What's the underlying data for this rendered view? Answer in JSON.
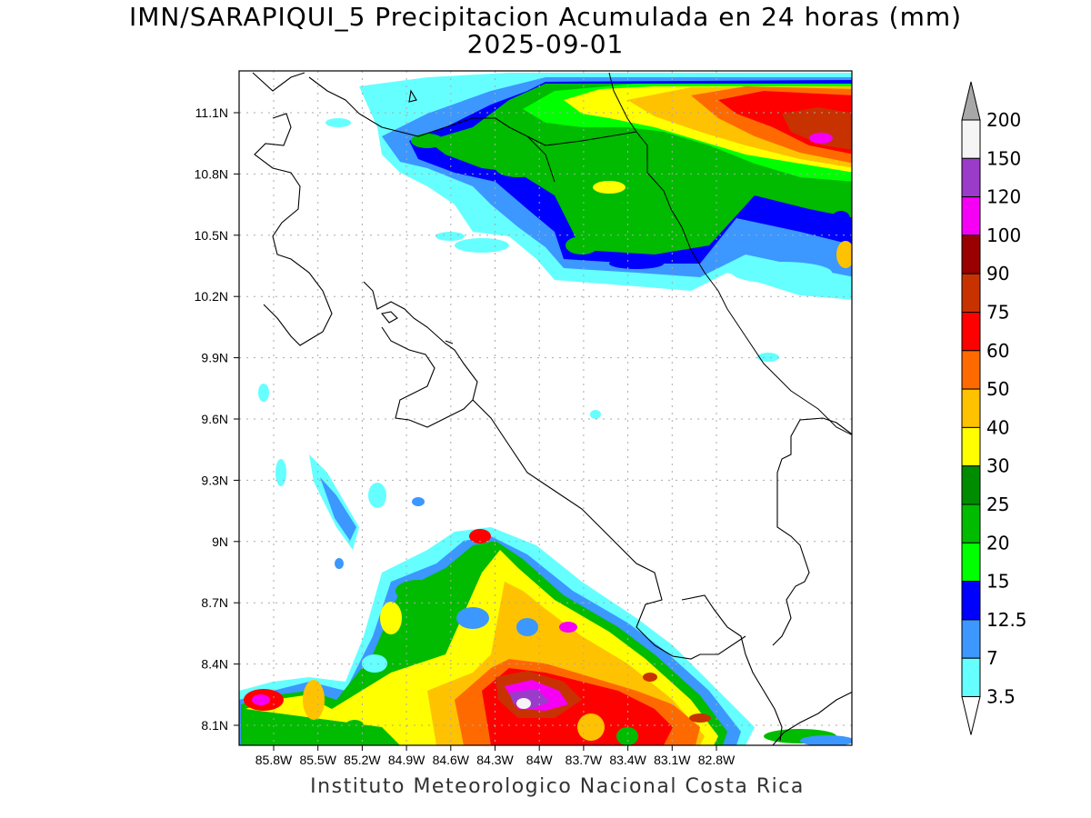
{
  "title": "IMN/SARAPIQUI_5 Precipitacion Acumulada en 24 horas (mm)",
  "subtitle": "2025-09-01",
  "credit": "Instituto Meteorologico Nacional Costa Rica",
  "lat_ticks": [
    "11.1N",
    "10.8N",
    "10.5N",
    "10.2N",
    "9.9N",
    "9.6N",
    "9.3N",
    "9N",
    "8.7N",
    "8.4N",
    "8.1N"
  ],
  "lon_ticks": [
    "85.8W",
    "85.5W",
    "85.2W",
    "84.9W",
    "84.6W",
    "84.3W",
    "84W",
    "83.7W",
    "83.4W",
    "83.1W",
    "82.8W"
  ],
  "colorbar": {
    "labels": [
      "200",
      "150",
      "120",
      "100",
      "90",
      "75",
      "60",
      "50",
      "40",
      "30",
      "25",
      "20",
      "15",
      "12.5",
      "7",
      "3.5"
    ],
    "colors": [
      "#f5f5f5",
      "#9b3bc9",
      "#f500f5",
      "#9a0000",
      "#c83200",
      "#ff0000",
      "#ff6a00",
      "#ffc200",
      "#ffff00",
      "#008c00",
      "#00bb00",
      "#00ff00",
      "#0000ff",
      "#3c97ff",
      "#65ffff"
    ],
    "over_color": "#a8a8a8"
  }
}
